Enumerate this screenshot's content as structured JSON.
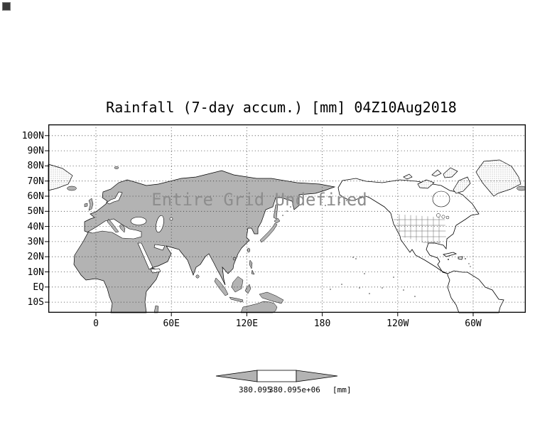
{
  "title": "Rainfall (7-day accum.) [mm] 04Z10Aug2018",
  "map": {
    "status_text": "Entire Grid Undefined"
  },
  "axes": {
    "y_labels": [
      "100N",
      "90N",
      "80N",
      "70N",
      "60N",
      "50N",
      "40N",
      "30N",
      "20N",
      "10N",
      "EQ",
      "10S"
    ],
    "x_labels": [
      "0",
      "60E",
      "120E",
      "180",
      "120W",
      "60W"
    ]
  },
  "colorbar": {
    "labels": [
      "380.095",
      "380.095e+06"
    ],
    "unit": "[mm]"
  },
  "colors": {
    "land_shaded": "#b3b3b3",
    "status_text": "#8d8d8d",
    "background": "#ffffff"
  },
  "chart_data": {
    "type": "heatmap",
    "title": "Rainfall (7-day accum.) [mm] 04Z10Aug2018",
    "variable": "Rainfall (7-day accum.)",
    "unit": "mm",
    "valid_time": "04Z10Aug2018",
    "projection": "equirectangular lat-lon world map",
    "x_tick_labels": [
      "0",
      "60E",
      "120E",
      "180",
      "120W",
      "60W"
    ],
    "y_tick_labels": [
      "100N",
      "90N",
      "80N",
      "70N",
      "60N",
      "50N",
      "40N",
      "30N",
      "20N",
      "10N",
      "EQ",
      "10S"
    ],
    "grid": "dotted lat-lon gridlines at 10-degree latitude and 60-degree longitude intervals",
    "values": null,
    "status": "Entire Grid Undefined",
    "colorbar": {
      "shape": "horizontal bar with left and right arrow ends",
      "segments": [
        "gray-left-arrow",
        "white-center",
        "gray-right-arrow"
      ],
      "tick_labels": [
        "380.095",
        "380.095e+06"
      ],
      "unit": "[mm]"
    },
    "legend_position": "bottom-center",
    "notes": "Afro-Eurasian landmass shaded gray; Americas and Greenland drawn as outlines; no rainfall field plotted because entire grid is undefined"
  }
}
